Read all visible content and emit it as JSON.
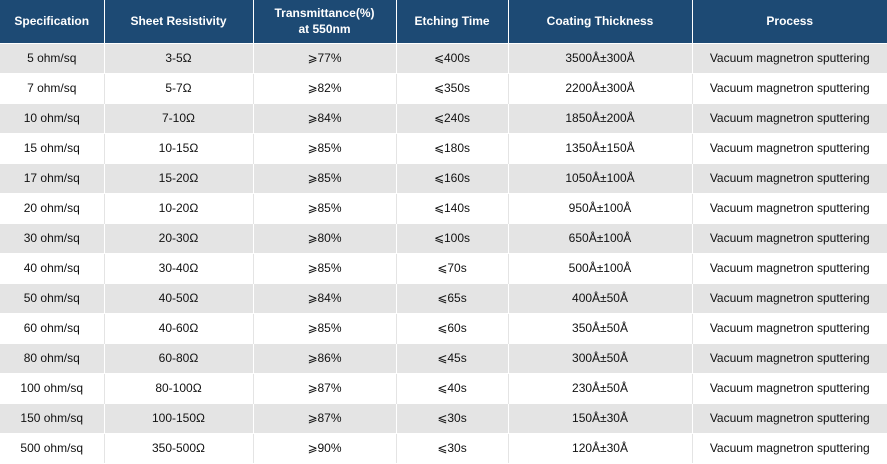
{
  "table": {
    "headers": [
      {
        "line1": "Specification",
        "line2": ""
      },
      {
        "line1": "Sheet Resistivity",
        "line2": ""
      },
      {
        "line1": "Transmittance(%)",
        "line2": "at 550nm"
      },
      {
        "line1": "Etching Time",
        "line2": ""
      },
      {
        "line1": "Coating Thickness",
        "line2": ""
      },
      {
        "line1": "Process",
        "line2": ""
      }
    ],
    "rows": [
      [
        "5 ohm/sq",
        "3-5Ω",
        "⩾77%",
        "⩽400s",
        "3500Å±300Å",
        "Vacuum magnetron sputtering"
      ],
      [
        "7 ohm/sq",
        "5-7Ω",
        "⩾82%",
        "⩽350s",
        "2200Å±300Å",
        "Vacuum magnetron sputtering"
      ],
      [
        "10 ohm/sq",
        "7-10Ω",
        "⩾84%",
        "⩽240s",
        "1850Å±200Å",
        "Vacuum magnetron sputtering"
      ],
      [
        "15 ohm/sq",
        "10-15Ω",
        "⩾85%",
        "⩽180s",
        "1350Å±150Å",
        "Vacuum magnetron sputtering"
      ],
      [
        "17 ohm/sq",
        "15-20Ω",
        "⩾85%",
        "⩽160s",
        "1050Å±100Å",
        "Vacuum magnetron sputtering"
      ],
      [
        "20 ohm/sq",
        "10-20Ω",
        "⩾85%",
        "⩽140s",
        "950Å±100Å",
        "Vacuum magnetron sputtering"
      ],
      [
        "30 ohm/sq",
        "20-30Ω",
        "⩾80%",
        "⩽100s",
        "650Å±100Å",
        "Vacuum magnetron sputtering"
      ],
      [
        "40 ohm/sq",
        "30-40Ω",
        "⩾85%",
        "⩽70s",
        "500Å±100Å",
        "Vacuum magnetron sputtering"
      ],
      [
        "50 ohm/sq",
        "40-50Ω",
        "⩾84%",
        "⩽65s",
        "400Å±50Å",
        "Vacuum magnetron sputtering"
      ],
      [
        "60 ohm/sq",
        "40-60Ω",
        "⩾85%",
        "⩽60s",
        "350Å±50Å",
        "Vacuum magnetron sputtering"
      ],
      [
        "80 ohm/sq",
        "60-80Ω",
        "⩾86%",
        "⩽45s",
        "300Å±50Å",
        "Vacuum magnetron sputtering"
      ],
      [
        "100 ohm/sq",
        "80-100Ω",
        "⩾87%",
        "⩽40s",
        "230Å±50Å",
        "Vacuum magnetron sputtering"
      ],
      [
        "150 ohm/sq",
        "100-150Ω",
        "⩾87%",
        "⩽30s",
        "150Å±30Å",
        "Vacuum magnetron sputtering"
      ],
      [
        "500 ohm/sq",
        "350-500Ω",
        "⩾90%",
        "⩽30s",
        "120Å±30Å",
        "Vacuum magnetron sputtering"
      ]
    ]
  },
  "colors": {
    "header_bg": "#1d4a74",
    "header_text": "#ffffff",
    "row_shade": "#e4e4e4",
    "row_plain": "#ffffff"
  }
}
